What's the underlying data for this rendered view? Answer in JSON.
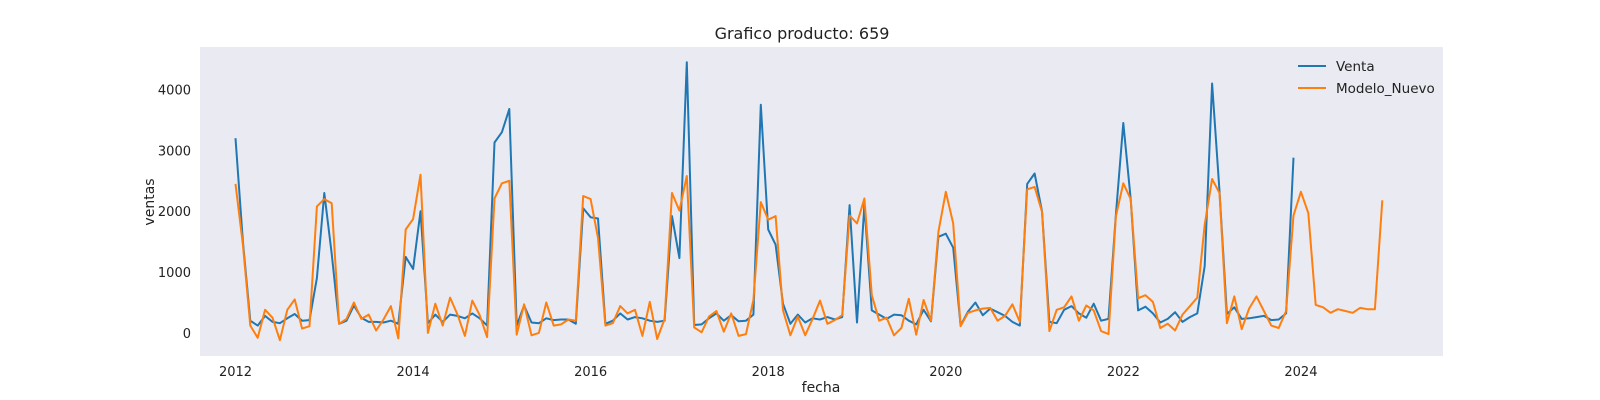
{
  "chart_data": {
    "type": "line",
    "title": "Grafico producto: 659",
    "xlabel": "fecha",
    "ylabel": "ventas",
    "xlim": [
      2011.6,
      2025.6
    ],
    "ylim": [
      -380,
      4700
    ],
    "xticks": [
      2012,
      2014,
      2016,
      2018,
      2020,
      2022,
      2024
    ],
    "yticks": [
      0,
      1000,
      2000,
      3000,
      4000
    ],
    "grid": false,
    "background": "#eaeaf2",
    "legend_position": "top-right",
    "series": [
      {
        "name": "Venta",
        "color": "#1f77b4",
        "start": 2012.0,
        "step": 0.08333,
        "values": [
          3200,
          1500,
          200,
          120,
          280,
          180,
          160,
          240,
          310,
          200,
          210,
          900,
          2300,
          1300,
          150,
          200,
          450,
          250,
          180,
          180,
          170,
          200,
          150,
          1250,
          1050,
          2000,
          160,
          300,
          180,
          300,
          280,
          240,
          320,
          240,
          120,
          3130,
          3300,
          3680,
          120,
          450,
          170,
          160,
          240,
          210,
          220,
          220,
          150,
          2050,
          1900,
          1880,
          150,
          200,
          320,
          220,
          260,
          240,
          200,
          180,
          200,
          1920,
          1230,
          4450,
          130,
          140,
          240,
          320,
          200,
          290,
          190,
          200,
          300,
          3750,
          1700,
          1450,
          480,
          150,
          300,
          170,
          240,
          220,
          260,
          220,
          260,
          2100,
          170,
          2100,
          370,
          300,
          230,
          300,
          290,
          200,
          140,
          380,
          190,
          1580,
          1630,
          1400,
          120,
          350,
          500,
          290,
          400,
          340,
          280,
          180,
          120,
          2450,
          2620,
          2000,
          180,
          160,
          380,
          440,
          320,
          250,
          480,
          200,
          230,
          1950,
          3450,
          2200,
          370,
          430,
          320,
          170,
          230,
          340,
          180,
          260,
          320,
          1100,
          4100,
          2330,
          310,
          420,
          230,
          240,
          260,
          280,
          210,
          220,
          320,
          2880
        ]
      },
      {
        "name": "Modelo_Nuevo",
        "color": "#ff7f0e",
        "start": 2012.0,
        "step": 0.08333,
        "values": [
          2450,
          1450,
          120,
          -80,
          380,
          250,
          -120,
          380,
          550,
          70,
          110,
          2080,
          2200,
          2130,
          150,
          230,
          500,
          230,
          300,
          40,
          220,
          440,
          -90,
          1700,
          1870,
          2600,
          0,
          480,
          120,
          580,
          300,
          -50,
          530,
          290,
          -70,
          2210,
          2460,
          2500,
          -30,
          470,
          -40,
          0,
          500,
          120,
          140,
          220,
          200,
          2250,
          2200,
          1560,
          120,
          160,
          440,
          320,
          380,
          -50,
          510,
          -100,
          230,
          2300,
          2010,
          2580,
          90,
          10,
          270,
          360,
          20,
          320,
          -50,
          -20,
          540,
          2150,
          1860,
          1920,
          370,
          -40,
          270,
          -40,
          230,
          530,
          150,
          210,
          290,
          1930,
          1800,
          2210,
          620,
          200,
          250,
          -40,
          80,
          560,
          -30,
          540,
          200,
          1660,
          2320,
          1800,
          110,
          330,
          370,
          400,
          410,
          200,
          280,
          470,
          180,
          2360,
          2400,
          1990,
          30,
          380,
          420,
          600,
          200,
          450,
          370,
          30,
          -20,
          1920,
          2460,
          2200,
          570,
          620,
          510,
          80,
          150,
          40,
          300,
          440,
          580,
          1780,
          2530,
          2300,
          160,
          600,
          60,
          400,
          600,
          360,
          120,
          80,
          360,
          1930,
          2320,
          1970,
          460,
          420,
          330,
          390,
          360,
          330,
          410,
          390,
          390,
          2180
        ]
      }
    ]
  }
}
